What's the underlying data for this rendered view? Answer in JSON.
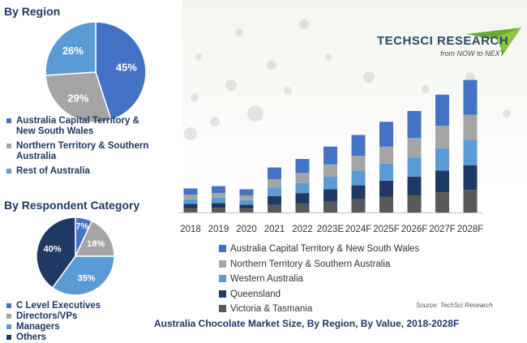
{
  "region_title": "By Region",
  "respondent_title": "By Respondent Category",
  "brand": {
    "name": "TechSci Research",
    "name_display": "TECHSCI RESEARCH",
    "tagline": "from NOW to NEXT"
  },
  "source": "Source: TechSci Research",
  "caption": "Australia Chocolate Market Size, By Region, By Value, 2018-2028F",
  "colors": {
    "act_nsw": "#3f6fc6",
    "nt_sa": "#a6a6a6",
    "western_australia": "#5b9bd5",
    "queensland": "#203864",
    "victoria_tasmania": "#555555"
  },
  "chart_data": [
    {
      "type": "pie",
      "title": "By Region",
      "slices": [
        {
          "label": "Australia Capital Territory & New South Wales",
          "value": 45,
          "display": "45%",
          "color": "#4472c4"
        },
        {
          "label": "Northern Territory & Southern Australia",
          "value": 29,
          "display": "29%",
          "color": "#a5a5a5"
        },
        {
          "label": "Rest of Australia",
          "value": 26,
          "display": "26%",
          "color": "#5b9bd5"
        }
      ],
      "legend_lines": [
        [
          "Australia Capital Territory &",
          "New South Wales"
        ],
        [
          "Northern Territory & Southern",
          "Australia"
        ],
        [
          "Rest of Australia"
        ]
      ]
    },
    {
      "type": "pie",
      "title": "By Respondent Category",
      "slices": [
        {
          "label": "C Level Executives",
          "value": 7,
          "display": "7%",
          "color": "#4472c4"
        },
        {
          "label": "Directors/VPs",
          "value": 18,
          "display": "18%",
          "color": "#a5a5a5"
        },
        {
          "label": "Managers",
          "value": 35,
          "display": "35%",
          "color": "#5b9bd5"
        },
        {
          "label": "Others",
          "value": 40,
          "display": "40%",
          "color": "#203864"
        }
      ]
    },
    {
      "type": "bar",
      "stacked": true,
      "title": "Australia Chocolate Market Size, By Region, By Value, 2018-2028F",
      "categories": [
        "2018",
        "2019",
        "2020",
        "2021",
        "2022",
        "2023E",
        "2024F",
        "2025F",
        "2026F",
        "2027F",
        "2028F"
      ],
      "series": [
        {
          "name": "Victoria & Tasmania",
          "color": "#595959",
          "values": [
            5,
            6,
            5,
            10,
            12,
            14,
            17,
            20,
            22,
            26,
            29
          ]
        },
        {
          "name": "Queensland",
          "color": "#203864",
          "values": [
            6,
            6,
            5,
            11,
            13,
            16,
            18,
            21,
            24,
            28,
            32
          ]
        },
        {
          "name": "Western Australia",
          "color": "#5b9bd5",
          "values": [
            6,
            7,
            6,
            11,
            13,
            16,
            19,
            22,
            25,
            29,
            33
          ]
        },
        {
          "name": "Northern Territory & Southern Australia",
          "color": "#a5a5a5",
          "values": [
            6,
            6,
            6,
            11,
            13,
            16,
            19,
            22,
            25,
            29,
            32
          ]
        },
        {
          "name": "Australia Capital Territory & New South Wales",
          "color": "#4472c4",
          "values": [
            8,
            9,
            8,
            15,
            18,
            23,
            27,
            32,
            35,
            40,
            45
          ]
        }
      ],
      "legend_order": [
        "Australia Capital Territory & New South Wales",
        "Northern Territory & Southern Australia",
        "Western Australia",
        "Queensland",
        "Victoria & Tasmania"
      ],
      "ylim": [
        0,
        180
      ],
      "grid": false
    }
  ]
}
